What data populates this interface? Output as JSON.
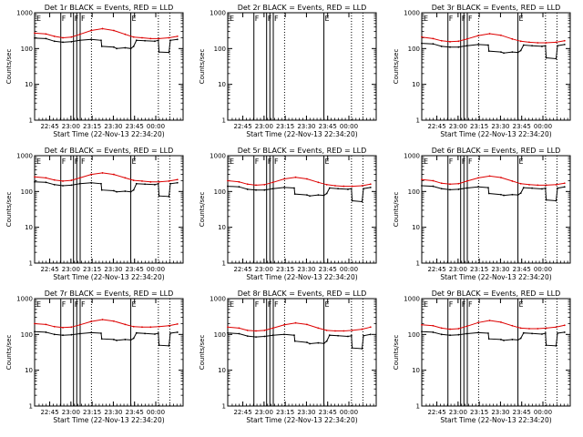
{
  "chart_data": {
    "type": "line",
    "grid": false,
    "y_scale": "log",
    "ylim": [
      1,
      1000
    ],
    "y_ticks": [
      1,
      10,
      100,
      1000
    ],
    "y_tick_labels": [
      "1",
      "10",
      "100",
      "1000"
    ],
    "ylabel": "Counts/sec",
    "xlabel": "Start Time (22-Nov-13 22:34:20)",
    "x_units": "minutes after 22:34:20",
    "xlim": [
      0,
      105
    ],
    "x_ticks": [
      10.67,
      25.67,
      40.67,
      55.67,
      70.67,
      85.67
    ],
    "x_tick_labels": [
      "22:45",
      "23:00",
      "23:15",
      "23:30",
      "23:45",
      "00:00"
    ],
    "series_names": [
      "Events",
      "LLD"
    ],
    "series_colors": {
      "Events": "#000000",
      "LLD": "#dd0000"
    },
    "flag_lines_solid": [
      18.5,
      27.5,
      29.8,
      32.2,
      68.0
    ],
    "flag_lines_dotted": [
      40.2,
      87.5,
      95.6
    ],
    "flag_labels": [
      {
        "text": "F",
        "x": 18.5
      },
      {
        "text": "F",
        "x": 27.5
      },
      {
        "text": "F",
        "x": 32.2
      },
      {
        "text": "E",
        "x": 68.0
      }
    ],
    "panels": [
      {
        "detector": "1r",
        "title": "Det 1r BLACK = Events, RED = LLD",
        "events": {
          "x": [
            0,
            8,
            14,
            20,
            26,
            32,
            40,
            47,
            47.5,
            56,
            58,
            64,
            68,
            70,
            72,
            78,
            85,
            87.5,
            88,
            95,
            96,
            101
          ],
          "y": [
            195,
            190,
            160,
            150,
            155,
            170,
            180,
            170,
            115,
            110,
            100,
            105,
            100,
            115,
            170,
            165,
            160,
            170,
            80,
            78,
            170,
            180
          ]
        },
        "lld": {
          "x": [
            0,
            8,
            14,
            20,
            26,
            32,
            40,
            48,
            56,
            64,
            70,
            76,
            82,
            88,
            95,
            101
          ],
          "y": [
            270,
            255,
            220,
            200,
            210,
            250,
            320,
            360,
            320,
            250,
            210,
            200,
            190,
            190,
            200,
            220
          ]
        }
      },
      {
        "detector": "2r",
        "title": "Det 2r BLACK = Events, RED = LLD",
        "events": null,
        "lld": null
      },
      {
        "detector": "3r",
        "title": "Det 3r BLACK = Events, RED = LLD",
        "events": {
          "x": [
            0,
            8,
            14,
            20,
            26,
            32,
            40,
            47,
            47.5,
            56,
            58,
            64,
            68,
            70,
            72,
            78,
            85,
            87.5,
            88,
            95,
            96,
            101
          ],
          "y": [
            140,
            135,
            115,
            110,
            110,
            120,
            130,
            125,
            85,
            80,
            75,
            80,
            78,
            88,
            125,
            120,
            115,
            120,
            55,
            52,
            120,
            130
          ]
        },
        "lld": {
          "x": [
            0,
            8,
            14,
            20,
            26,
            32,
            40,
            48,
            56,
            64,
            70,
            76,
            82,
            88,
            95,
            101
          ],
          "y": [
            210,
            190,
            165,
            155,
            160,
            185,
            230,
            260,
            235,
            185,
            160,
            150,
            145,
            145,
            150,
            165
          ]
        }
      },
      {
        "detector": "4r",
        "title": "Det 4r BLACK = Events, RED = LLD",
        "events": {
          "x": [
            0,
            8,
            14,
            20,
            26,
            32,
            40,
            47,
            47.5,
            56,
            58,
            64,
            68,
            70,
            72,
            78,
            85,
            87.5,
            88,
            95,
            96,
            101
          ],
          "y": [
            185,
            180,
            155,
            145,
            150,
            165,
            175,
            165,
            110,
            105,
            98,
            102,
            98,
            110,
            165,
            160,
            155,
            165,
            75,
            72,
            165,
            175
          ]
        },
        "lld": {
          "x": [
            0,
            8,
            14,
            20,
            26,
            32,
            40,
            48,
            56,
            64,
            70,
            76,
            82,
            88,
            95,
            101
          ],
          "y": [
            255,
            240,
            210,
            195,
            205,
            240,
            300,
            330,
            300,
            240,
            205,
            195,
            185,
            185,
            195,
            215
          ]
        }
      },
      {
        "detector": "5r",
        "title": "Det 5r BLACK = Events, RED = LLD",
        "events": {
          "x": [
            0,
            8,
            14,
            20,
            26,
            32,
            40,
            47,
            47.5,
            56,
            58,
            64,
            68,
            70,
            72,
            78,
            85,
            87.5,
            88,
            95,
            96,
            101
          ],
          "y": [
            140,
            135,
            115,
            110,
            110,
            120,
            130,
            125,
            85,
            80,
            75,
            80,
            78,
            88,
            125,
            120,
            115,
            120,
            55,
            52,
            120,
            130
          ]
        },
        "lld": {
          "x": [
            0,
            8,
            14,
            20,
            26,
            32,
            40,
            48,
            56,
            64,
            70,
            76,
            82,
            88,
            95,
            101
          ],
          "y": [
            200,
            185,
            160,
            150,
            155,
            180,
            225,
            250,
            225,
            180,
            155,
            145,
            140,
            140,
            145,
            160
          ]
        }
      },
      {
        "detector": "6r",
        "title": "Det 6r BLACK = Events, RED = LLD",
        "events": {
          "x": [
            0,
            8,
            14,
            20,
            26,
            32,
            40,
            47,
            47.5,
            56,
            58,
            64,
            68,
            70,
            72,
            78,
            85,
            87.5,
            88,
            95,
            96,
            101
          ],
          "y": [
            145,
            140,
            120,
            112,
            115,
            125,
            135,
            128,
            88,
            82,
            78,
            82,
            80,
            90,
            128,
            124,
            118,
            124,
            58,
            55,
            124,
            134
          ]
        },
        "lld": {
          "x": [
            0,
            8,
            14,
            20,
            26,
            32,
            40,
            48,
            56,
            64,
            70,
            76,
            82,
            88,
            95,
            101
          ],
          "y": [
            215,
            200,
            170,
            160,
            165,
            195,
            240,
            270,
            245,
            195,
            165,
            155,
            150,
            150,
            155,
            170
          ]
        }
      },
      {
        "detector": "7r",
        "title": "Det 7r BLACK = Events, RED = LLD",
        "events": {
          "x": [
            0,
            8,
            14,
            20,
            26,
            32,
            40,
            47,
            47.5,
            56,
            58,
            64,
            68,
            70,
            72,
            78,
            85,
            87.5,
            88,
            95,
            96,
            101
          ],
          "y": [
            120,
            115,
            100,
            95,
            98,
            105,
            112,
            108,
            75,
            72,
            68,
            72,
            70,
            78,
            110,
            106,
            102,
            108,
            50,
            48,
            108,
            115
          ]
        },
        "lld": {
          "x": [
            0,
            8,
            14,
            20,
            26,
            32,
            40,
            48,
            56,
            64,
            70,
            76,
            82,
            88,
            95,
            101
          ],
          "y": [
            200,
            190,
            165,
            155,
            160,
            185,
            230,
            260,
            235,
            190,
            165,
            160,
            160,
            165,
            175,
            195
          ]
        }
      },
      {
        "detector": "8r",
        "title": "Det 8r BLACK = Events, RED = LLD",
        "events": {
          "x": [
            0,
            8,
            14,
            20,
            26,
            32,
            40,
            47,
            47.5,
            56,
            58,
            64,
            68,
            70,
            72,
            78,
            85,
            87.5,
            88,
            95,
            96,
            101
          ],
          "y": [
            110,
            105,
            90,
            85,
            88,
            95,
            100,
            95,
            65,
            60,
            55,
            58,
            56,
            65,
            95,
            92,
            88,
            92,
            42,
            40,
            92,
            100
          ]
        },
        "lld": {
          "x": [
            0,
            8,
            14,
            20,
            26,
            32,
            40,
            48,
            56,
            64,
            70,
            76,
            82,
            88,
            95,
            101
          ],
          "y": [
            160,
            150,
            130,
            125,
            130,
            150,
            185,
            210,
            190,
            150,
            130,
            125,
            125,
            130,
            140,
            160
          ]
        }
      },
      {
        "detector": "9r",
        "title": "Det 9r BLACK = Events, RED = LLD",
        "events": {
          "x": [
            0,
            8,
            14,
            20,
            26,
            32,
            40,
            47,
            47.5,
            56,
            58,
            64,
            68,
            70,
            72,
            78,
            85,
            87.5,
            88,
            95,
            96,
            101
          ],
          "y": [
            120,
            115,
            100,
            95,
            98,
            105,
            112,
            108,
            75,
            72,
            68,
            72,
            70,
            78,
            110,
            106,
            102,
            108,
            50,
            48,
            108,
            115
          ]
        },
        "lld": {
          "x": [
            0,
            8,
            14,
            20,
            26,
            32,
            40,
            48,
            56,
            64,
            70,
            76,
            82,
            88,
            95,
            101
          ],
          "y": [
            185,
            175,
            150,
            140,
            145,
            170,
            215,
            245,
            220,
            175,
            150,
            145,
            145,
            150,
            160,
            180
          ]
        }
      }
    ]
  }
}
